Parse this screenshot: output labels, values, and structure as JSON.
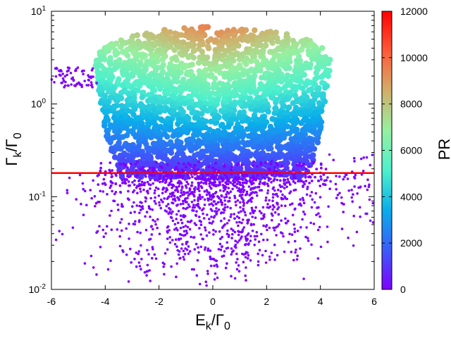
{
  "chart_data": {
    "type": "scatter",
    "title": "",
    "x_axis": {
      "label_main": "E",
      "label_sub": "k",
      "label_sep": "/Γ",
      "label_sub2": "0",
      "range": [
        -6,
        6
      ],
      "ticks": [
        "-6",
        "-4",
        "-2",
        "0",
        "2",
        "4",
        "6"
      ],
      "tick_values": [
        -6,
        -4,
        -2,
        0,
        2,
        4,
        6
      ]
    },
    "y_axis": {
      "label_main": "Γ",
      "label_sub": "k",
      "label_sep": "/Γ",
      "label_sub2": "0",
      "scale": "log",
      "range": [
        0.01,
        10
      ],
      "ticks": [
        {
          "base": "10",
          "exp": "1",
          "value": 10
        },
        {
          "base": "10",
          "exp": "0",
          "value": 1
        },
        {
          "base": "10",
          "exp": "-1",
          "value": 0.1
        },
        {
          "base": "10",
          "exp": "-2",
          "value": 0.01
        }
      ]
    },
    "colorbar": {
      "label": "PR",
      "range": [
        0,
        12000
      ],
      "ticks": [
        "0",
        "2000",
        "4000",
        "6000",
        "8000",
        "10000",
        "12000"
      ],
      "tick_values": [
        0,
        2000,
        4000,
        6000,
        8000,
        10000,
        12000
      ],
      "colormap": "rainbow",
      "colors": [
        "#7f00ff",
        "#3b5cf9",
        "#09aeea",
        "#4ef0cc",
        "#96f0a0",
        "#d2ae6a",
        "#ff5a3a",
        "#ff0000"
      ]
    },
    "horizontal_line": {
      "y": 0.18,
      "color": "#ff0000"
    },
    "dense_region": {
      "x_range": [
        -4.4,
        4.4
      ],
      "y_range": [
        0.18,
        6.8
      ],
      "description_values": {
        "top_center_y": 6.8,
        "shoulder_y": 3.0,
        "edge_x_at_top": 4.4,
        "edge_x_at_bottom": 3.5
      }
    },
    "outliers": {
      "color": "#7f00ff",
      "x_range": [
        -6,
        6
      ],
      "y_range": [
        0.01,
        0.3
      ],
      "tail_left": {
        "x_range": [
          -6,
          -4.3
        ],
        "y_range": [
          1.5,
          2.5
        ]
      }
    },
    "grid": false,
    "legend": "none"
  }
}
